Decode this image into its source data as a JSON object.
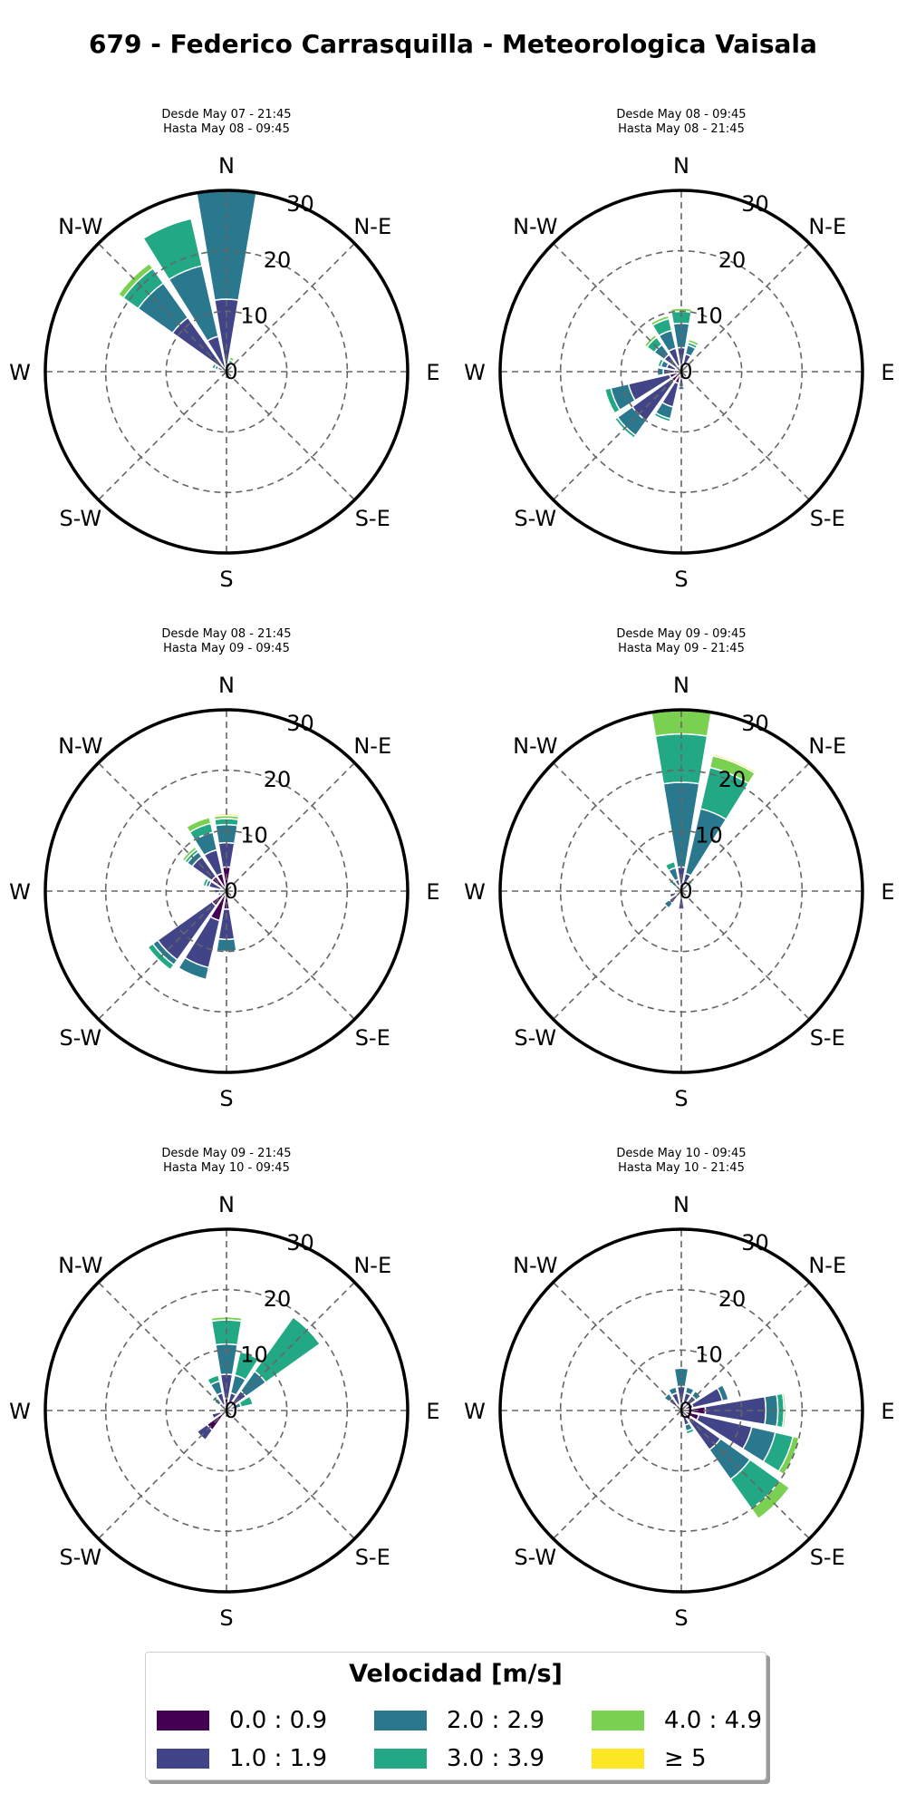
{
  "title": "679 - Federico Carrasquilla - Meteorologica Vaisala",
  "legend": {
    "title": "Velocidad [m/s]",
    "items": [
      {
        "label": "0.0 : 0.9",
        "color": "#440154"
      },
      {
        "label": "1.0 : 1.9",
        "color": "#414487"
      },
      {
        "label": "2.0 : 2.9",
        "color": "#2a788e"
      },
      {
        "label": "3.0 : 3.9",
        "color": "#22a884"
      },
      {
        "label": "4.0 : 4.9",
        "color": "#7ad151"
      },
      {
        "label": "≥  5",
        "color": "#fde725"
      }
    ]
  },
  "chart_data": [
    {
      "type": "windrose",
      "title": "Desde May 07 - 21:45\nHasta May 08 - 09:45",
      "radial_ticks": [
        0,
        10,
        20,
        30
      ],
      "rlim": [
        0,
        30
      ],
      "direction_labels": [
        "N",
        "N-E",
        "E",
        "S-E",
        "S",
        "S-W",
        "W",
        "N-W"
      ],
      "sectors": [
        {
          "direction": 0,
          "values": [
            0,
            12,
            18,
            0,
            0,
            0
          ]
        },
        {
          "direction": 22.5,
          "values": [
            0,
            0.5,
            1,
            0.5,
            0.5,
            0
          ]
        },
        {
          "direction": 45,
          "values": [
            0,
            0.3,
            0.5,
            0.5,
            0.3,
            0
          ]
        },
        {
          "direction": 180,
          "values": [
            0,
            0.5,
            0,
            0,
            0,
            0
          ]
        },
        {
          "direction": 202.5,
          "values": [
            0,
            0.4,
            0,
            0,
            0,
            0
          ]
        },
        {
          "direction": 247.5,
          "values": [
            0,
            0.5,
            0.3,
            0,
            0,
            0
          ]
        },
        {
          "direction": 270,
          "values": [
            0,
            0.4,
            0,
            0,
            0,
            0
          ]
        },
        {
          "direction": 292.5,
          "values": [
            0.5,
            1,
            0.5,
            0.5,
            0,
            0
          ]
        },
        {
          "direction": 315,
          "values": [
            0,
            11,
            7,
            3,
            1,
            0
          ]
        },
        {
          "direction": 337.5,
          "values": [
            0,
            6,
            12,
            8,
            0,
            0
          ]
        }
      ]
    },
    {
      "type": "windrose",
      "title": "Desde May 08 - 09:45\nHasta May 08 - 21:45",
      "radial_ticks": [
        0,
        10,
        20,
        30
      ],
      "rlim": [
        0,
        30
      ],
      "direction_labels": [
        "N",
        "N-E",
        "E",
        "S-E",
        "S",
        "S-W",
        "W",
        "N-W"
      ],
      "sectors": [
        {
          "direction": 0,
          "values": [
            1,
            3,
            4,
            2,
            0.5,
            0
          ]
        },
        {
          "direction": 22.5,
          "values": [
            1,
            2,
            1.5,
            0.5,
            0.5,
            0
          ]
        },
        {
          "direction": 45,
          "values": [
            0.5,
            1,
            0.5,
            0,
            0,
            0
          ]
        },
        {
          "direction": 90,
          "values": [
            0.3,
            0.2,
            0,
            0,
            0,
            0
          ]
        },
        {
          "direction": 135,
          "values": [
            0.5,
            0.5,
            0,
            0,
            0,
            0
          ]
        },
        {
          "direction": 180,
          "values": [
            1,
            1.5,
            0.5,
            0,
            0,
            0
          ]
        },
        {
          "direction": 202.5,
          "values": [
            2,
            4,
            2,
            0.5,
            0.2,
            0
          ]
        },
        {
          "direction": 225,
          "values": [
            2,
            8,
            3,
            0.5,
            0,
            0
          ]
        },
        {
          "direction": 247.5,
          "values": [
            2,
            7,
            3,
            1,
            0.2,
            0
          ]
        },
        {
          "direction": 270,
          "values": [
            1,
            2,
            1,
            0,
            0,
            0
          ]
        },
        {
          "direction": 292.5,
          "values": [
            1,
            1.5,
            1,
            0.5,
            0,
            0
          ]
        },
        {
          "direction": 315,
          "values": [
            1,
            2.5,
            2,
            1.5,
            0.5,
            0
          ]
        },
        {
          "direction": 337.5,
          "values": [
            1,
            3,
            3,
            2,
            0.5,
            0
          ]
        }
      ]
    },
    {
      "type": "windrose",
      "title": "Desde May 08 - 21:45\nHasta May 09 - 09:45",
      "radial_ticks": [
        0,
        10,
        20,
        30
      ],
      "rlim": [
        0,
        30
      ],
      "direction_labels": [
        "N",
        "N-E",
        "E",
        "S-E",
        "S",
        "S-W",
        "W",
        "N-W"
      ],
      "sectors": [
        {
          "direction": 0,
          "values": [
            4,
            4,
            3,
            1,
            0.5,
            0.3
          ]
        },
        {
          "direction": 337.5,
          "values": [
            3,
            4,
            3,
            1.5,
            1,
            0
          ]
        },
        {
          "direction": 315,
          "values": [
            3,
            4,
            1,
            0.5,
            0.5,
            0
          ]
        },
        {
          "direction": 292.5,
          "values": [
            1,
            2,
            0.5,
            0.5,
            0,
            0
          ]
        },
        {
          "direction": 270,
          "values": [
            1,
            1,
            0,
            0,
            0,
            0
          ]
        },
        {
          "direction": 247.5,
          "values": [
            1,
            0.5,
            0,
            0,
            0,
            0
          ]
        },
        {
          "direction": 225,
          "values": [
            3,
            11,
            1,
            1,
            0,
            0
          ]
        },
        {
          "direction": 202.5,
          "values": [
            5,
            8,
            2,
            0,
            0,
            0
          ]
        },
        {
          "direction": 180,
          "values": [
            3,
            5,
            2,
            0,
            0,
            0
          ]
        },
        {
          "direction": 45,
          "values": [
            0.3,
            0.2,
            0,
            0,
            0,
            0
          ]
        }
      ]
    },
    {
      "type": "windrose",
      "title": "Desde May 09 - 09:45\nHasta May 09 - 21:45",
      "radial_ticks": [
        0,
        10,
        20,
        30
      ],
      "rlim": [
        0,
        30
      ],
      "direction_labels": [
        "N",
        "N-E",
        "E",
        "S-E",
        "S",
        "S-W",
        "W",
        "N-W"
      ],
      "sectors": [
        {
          "direction": 0,
          "values": [
            1,
            3,
            14,
            8,
            4,
            0
          ]
        },
        {
          "direction": 22.5,
          "values": [
            1,
            2,
            11,
            7,
            2,
            0.3
          ]
        },
        {
          "direction": 45,
          "values": [
            0.3,
            0.5,
            1,
            0.5,
            0,
            0
          ]
        },
        {
          "direction": 180,
          "values": [
            0,
            3,
            0,
            0,
            0,
            0
          ]
        },
        {
          "direction": 225,
          "values": [
            1,
            1.5,
            1,
            0,
            0,
            0
          ]
        },
        {
          "direction": 247.5,
          "values": [
            1,
            1,
            0,
            0,
            0,
            0
          ]
        },
        {
          "direction": 270,
          "values": [
            0.5,
            0.5,
            0,
            0,
            0,
            0
          ]
        },
        {
          "direction": 315,
          "values": [
            0.5,
            0.5,
            1,
            0.5,
            0,
            0
          ]
        },
        {
          "direction": 337.5,
          "values": [
            1,
            1,
            2,
            1,
            0,
            0
          ]
        }
      ]
    },
    {
      "type": "windrose",
      "title": "Desde May 09 - 21:45\nHasta May 10 - 09:45",
      "radial_ticks": [
        0,
        10,
        20,
        30
      ],
      "rlim": [
        0,
        30
      ],
      "direction_labels": [
        "N",
        "N-E",
        "E",
        "S-E",
        "S",
        "S-W",
        "W",
        "N-W"
      ],
      "sectors": [
        {
          "direction": 0,
          "values": [
            2,
            4,
            5,
            4,
            0.5,
            0
          ]
        },
        {
          "direction": 22.5,
          "values": [
            1,
            2,
            3,
            4,
            0,
            0
          ]
        },
        {
          "direction": 45,
          "values": [
            1,
            3,
            4,
            11,
            0,
            0
          ]
        },
        {
          "direction": 67.5,
          "values": [
            0.5,
            1,
            1,
            2,
            0,
            0
          ]
        },
        {
          "direction": 90,
          "values": [
            0.5,
            0.5,
            0,
            0,
            0,
            0
          ]
        },
        {
          "direction": 135,
          "values": [
            0.5,
            0.5,
            0,
            0,
            0,
            0
          ]
        },
        {
          "direction": 202.5,
          "values": [
            0.3,
            0.3,
            0,
            0,
            0,
            0
          ]
        },
        {
          "direction": 225,
          "values": [
            4,
            2,
            0,
            0,
            0,
            0
          ]
        },
        {
          "direction": 247.5,
          "values": [
            1,
            1.5,
            0,
            0,
            0,
            0
          ]
        },
        {
          "direction": 270,
          "values": [
            0.5,
            0.5,
            0,
            0,
            0,
            0
          ]
        },
        {
          "direction": 292.5,
          "values": [
            0.5,
            0.5,
            0,
            0,
            0,
            0
          ]
        },
        {
          "direction": 315,
          "values": [
            0.5,
            1,
            1,
            0.5,
            0,
            0
          ]
        },
        {
          "direction": 337.5,
          "values": [
            1,
            2,
            2,
            1,
            0,
            0
          ]
        }
      ]
    },
    {
      "type": "windrose",
      "title": "Desde May 10 - 09:45\nHasta May 10 - 21:45",
      "radial_ticks": [
        0,
        10,
        20,
        30
      ],
      "rlim": [
        0,
        30
      ],
      "direction_labels": [
        "N",
        "N-E",
        "E",
        "S-E",
        "S",
        "S-W",
        "W",
        "N-W"
      ],
      "sectors": [
        {
          "direction": 0,
          "values": [
            1,
            3,
            3,
            0,
            0,
            0
          ]
        },
        {
          "direction": 22.5,
          "values": [
            1,
            2,
            1,
            0,
            0,
            0
          ]
        },
        {
          "direction": 45,
          "values": [
            1,
            2,
            1,
            0,
            0,
            0
          ]
        },
        {
          "direction": 67.5,
          "values": [
            2,
            5,
            1,
            0,
            0,
            0
          ]
        },
        {
          "direction": 90,
          "values": [
            4,
            10,
            2,
            1,
            0.3,
            0
          ]
        },
        {
          "direction": 112.5,
          "values": [
            3,
            9,
            4,
            3,
            1,
            0
          ]
        },
        {
          "direction": 135,
          "values": [
            2,
            6,
            6,
            6,
            2,
            0
          ]
        },
        {
          "direction": 157.5,
          "values": [
            1,
            1.5,
            1,
            0.5,
            0,
            0
          ]
        },
        {
          "direction": 202.5,
          "values": [
            0.5,
            0.5,
            0,
            0,
            0,
            0
          ]
        },
        {
          "direction": 247.5,
          "values": [
            0.3,
            0.5,
            0,
            0,
            0,
            0
          ]
        },
        {
          "direction": 270,
          "values": [
            0.5,
            0.5,
            0,
            0,
            0,
            0
          ]
        },
        {
          "direction": 292.5,
          "values": [
            0.5,
            0.5,
            0.5,
            0,
            0,
            0
          ]
        },
        {
          "direction": 315,
          "values": [
            1,
            1.5,
            1,
            0,
            0,
            0
          ]
        },
        {
          "direction": 337.5,
          "values": [
            1,
            2,
            1,
            0,
            0,
            0
          ]
        }
      ]
    }
  ]
}
